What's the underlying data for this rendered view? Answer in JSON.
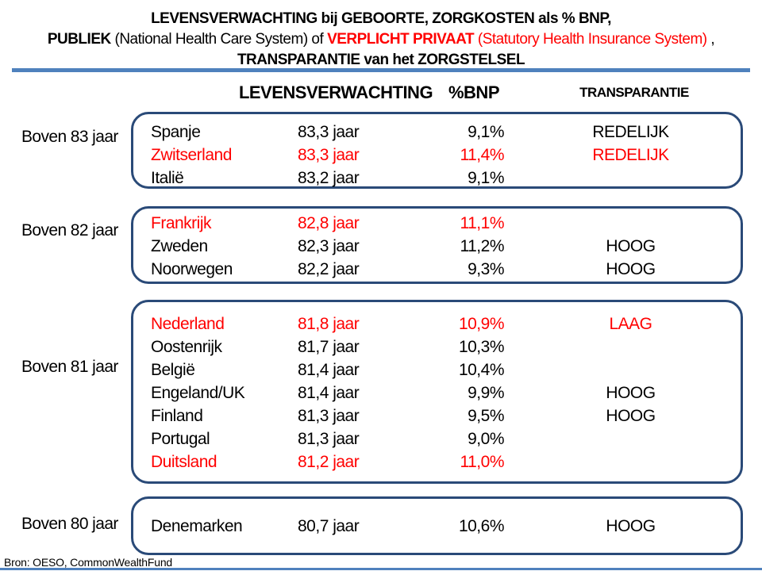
{
  "title": {
    "line1": "LEVENSVERWACHTING bij GEBOORTE, ZORGKOSTEN als % BNP,",
    "line2_segments": [
      {
        "text": "PUBLIEK "
      },
      {
        "text": "(National Health Care System) of "
      },
      {
        "text": "VERPLICHT PRIVAAT "
      },
      {
        "text": "(Statutory Health Insurance System)"
      },
      {
        "text": " ,"
      }
    ],
    "line3": "TRANSPARANTIE van het ZORGSTELSEL"
  },
  "columns": {
    "life": "LEVENSVERWACHTING",
    "gdp": "%BNP",
    "transparency": "TRANSPARANTIE"
  },
  "groups": [
    {
      "label": "Boven 83 jaar",
      "rows": [
        {
          "country": "Spanje",
          "life": "83,3 jaar",
          "gdp": "9,1%",
          "transparency": "REDELIJK"
        },
        {
          "country": "Zwitserland",
          "life": "83,3 jaar",
          "gdp": "11,4%",
          "transparency": "REDELIJK"
        },
        {
          "country": "Italië",
          "life": "83,2 jaar",
          "gdp": "9,1%",
          "transparency": ""
        }
      ]
    },
    {
      "label": "Boven 82 jaar",
      "rows": [
        {
          "country": "Frankrijk",
          "life": "82,8 jaar",
          "gdp": "11,1%",
          "transparency": ""
        },
        {
          "country": "Zweden",
          "life": "82,3 jaar",
          "gdp": "11,2%",
          "transparency": "HOOG"
        },
        {
          "country": "Noorwegen",
          "life": "82,2 jaar",
          "gdp": "9,3%",
          "transparency": "HOOG"
        }
      ]
    },
    {
      "label": "Boven 81 jaar",
      "rows": [
        {
          "country": "Nederland",
          "life": "81,8 jaar",
          "gdp": "10,9%",
          "transparency": "LAAG"
        },
        {
          "country": "Oostenrijk",
          "life": "81,7 jaar",
          "gdp": "10,3%",
          "transparency": ""
        },
        {
          "country": "België",
          "life": "81,4 jaar",
          "gdp": "10,4%",
          "transparency": ""
        },
        {
          "country": "Engeland/UK",
          "life": "81,4 jaar",
          "gdp": "9,9%",
          "transparency": "HOOG"
        },
        {
          "country": "Finland",
          "life": "81,3 jaar",
          "gdp": "9,5%",
          "transparency": "HOOG"
        },
        {
          "country": "Portugal",
          "life": "81,3 jaar",
          "gdp": "9,0%",
          "transparency": ""
        },
        {
          "country": "Duitsland",
          "life": "81,2 jaar",
          "gdp": "11,0%",
          "transparency": ""
        }
      ]
    },
    {
      "label": "Boven 80 jaar",
      "rows": [
        {
          "country": "Denemarken",
          "life": "80,7 jaar",
          "gdp": "10,6%",
          "transparency": "HOOG"
        }
      ]
    }
  ],
  "footer": {
    "source": "Bron:  OESO, CommonWealthFund"
  },
  "colors": {
    "accent_red": "#ff0000",
    "rule_blue": "#4f81bd",
    "box_border_blue": "#2a4a78",
    "text_black": "#000000"
  }
}
